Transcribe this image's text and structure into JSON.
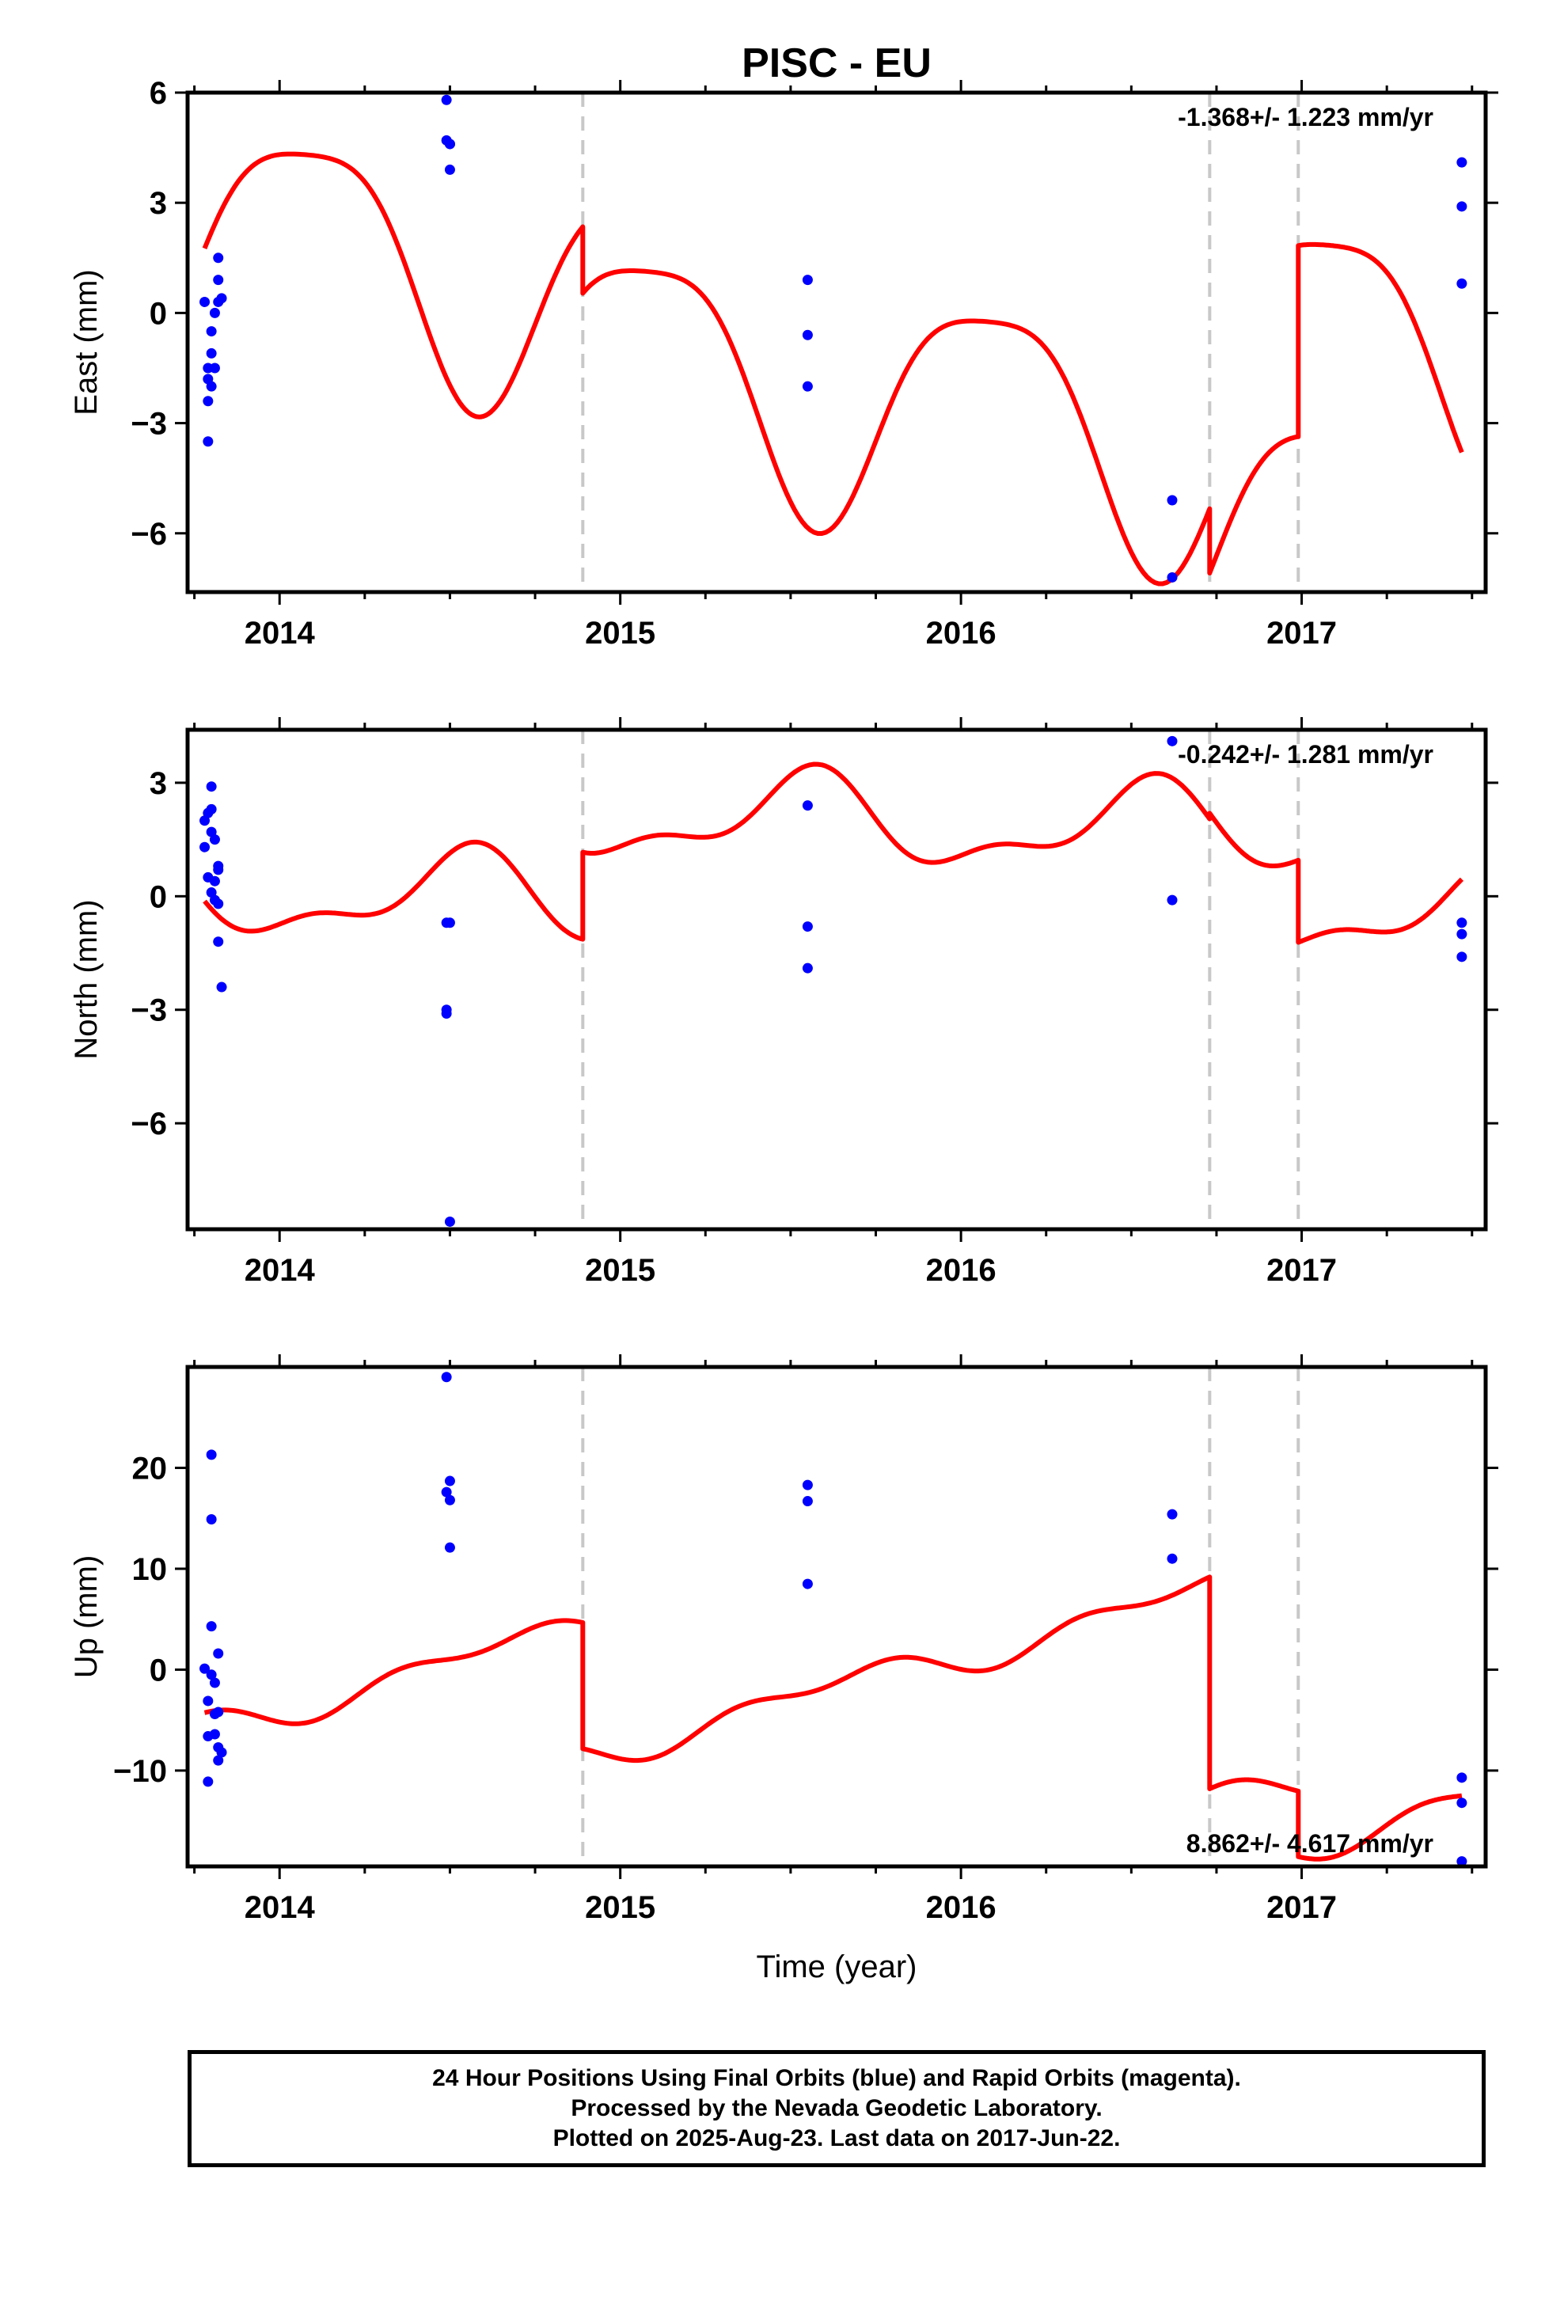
{
  "title": "PISC - EU",
  "footer": {
    "line1": "24 Hour Positions Using Final Orbits (blue) and Rapid Orbits (magenta).",
    "line2": "Processed by the Nevada Geodetic Laboratory.",
    "line3": "Plotted on 2025-Aug-23. Last data on 2017-Jun-22."
  },
  "colors": {
    "data_points": "#0000ff",
    "model": "#ff0000",
    "breaks": "#c8c8c8",
    "frame": "#000000"
  },
  "chart_data": [
    {
      "type": "scatter",
      "ylabel": "East (mm)",
      "xlabel": "",
      "xlim": [
        2013.73,
        2017.54
      ],
      "ylim": [
        -7.6,
        6.0
      ],
      "xticks": [
        2014,
        2015,
        2016,
        2017
      ],
      "yticks": [
        -6,
        -3,
        0,
        3,
        6
      ],
      "rate": "-1.368+/- 1.223 mm/yr",
      "rate_position": "top-right",
      "breaks": [
        2014.89,
        2016.73,
        2016.99
      ],
      "points": [
        [
          2013.78,
          0.3
        ],
        [
          2013.79,
          -1.5
        ],
        [
          2013.79,
          -1.8
        ],
        [
          2013.79,
          -2.4
        ],
        [
          2013.79,
          -3.5
        ],
        [
          2013.8,
          -0.5
        ],
        [
          2013.8,
          -1.1
        ],
        [
          2013.8,
          -2.0
        ],
        [
          2013.81,
          0.0
        ],
        [
          2013.81,
          -1.5
        ],
        [
          2013.82,
          0.3
        ],
        [
          2013.82,
          0.9
        ],
        [
          2013.82,
          1.5
        ],
        [
          2013.83,
          0.4
        ],
        [
          2014.49,
          5.8
        ],
        [
          2014.49,
          4.7
        ],
        [
          2014.5,
          4.6
        ],
        [
          2014.5,
          4.6
        ],
        [
          2014.5,
          3.9
        ],
        [
          2015.55,
          0.9
        ],
        [
          2015.55,
          -0.6
        ],
        [
          2015.55,
          -2.0
        ],
        [
          2016.62,
          -5.1
        ],
        [
          2016.62,
          -7.2
        ],
        [
          2017.47,
          4.1
        ],
        [
          2017.47,
          2.9
        ],
        [
          2017.47,
          0.8
        ]
      ],
      "model": {
        "segments": [
          [
            2013.78,
            2014.89
          ],
          [
            2014.89,
            2016.73
          ],
          [
            2016.73,
            2016.99
          ],
          [
            2016.99,
            2017.47
          ]
        ],
        "offsets": [
          -0.14,
          -1.95,
          -3.7,
          1.5
        ],
        "rate": -1.368,
        "annual": [
          1.6,
          2.8
        ],
        "semiannual": [
          -0.6,
          -0.4
        ],
        "t0": 2015.5
      }
    },
    {
      "type": "scatter",
      "ylabel": "North (mm)",
      "xlabel": "",
      "xlim": [
        2013.73,
        2017.54
      ],
      "ylim": [
        -8.8,
        4.4
      ],
      "xticks": [
        2014,
        2015,
        2016,
        2017
      ],
      "yticks": [
        -6,
        -3,
        0,
        3
      ],
      "rate": "-0.242+/- 1.281 mm/yr",
      "rate_position": "top-right",
      "breaks": [
        2014.89,
        2016.73,
        2016.99
      ],
      "points": [
        [
          2013.78,
          1.3
        ],
        [
          2013.78,
          2.0
        ],
        [
          2013.79,
          2.2
        ],
        [
          2013.79,
          0.5
        ],
        [
          2013.8,
          2.3
        ],
        [
          2013.8,
          1.7
        ],
        [
          2013.8,
          0.1
        ],
        [
          2013.8,
          2.9
        ],
        [
          2013.81,
          1.5
        ],
        [
          2013.81,
          0.4
        ],
        [
          2013.81,
          -0.1
        ],
        [
          2013.82,
          0.7
        ],
        [
          2013.82,
          -1.2
        ],
        [
          2013.82,
          -0.2
        ],
        [
          2013.82,
          0.8
        ],
        [
          2013.83,
          -2.4
        ],
        [
          2014.49,
          -0.7
        ],
        [
          2014.49,
          -3.0
        ],
        [
          2014.49,
          -3.1
        ],
        [
          2014.5,
          -0.7
        ],
        [
          2014.5,
          -8.6
        ],
        [
          2015.55,
          2.4
        ],
        [
          2015.55,
          -0.8
        ],
        [
          2015.55,
          -1.9
        ],
        [
          2016.62,
          4.1
        ],
        [
          2016.62,
          -0.1
        ],
        [
          2017.47,
          -0.7
        ],
        [
          2017.47,
          -1.0
        ],
        [
          2017.47,
          -1.6
        ]
      ],
      "model": {
        "segments": [
          [
            2013.78,
            2014.89
          ],
          [
            2014.89,
            2016.73
          ],
          [
            2016.73,
            2016.99
          ],
          [
            2016.99,
            2017.47
          ]
        ],
        "offsets": [
          -0.3,
          2.0,
          2.15,
          -0.02
        ],
        "rate": -0.242,
        "annual": [
          -0.3,
          -1.0
        ],
        "semiannual": [
          0.45,
          0.2
        ],
        "t0": 2015.5
      }
    },
    {
      "type": "scatter",
      "ylabel": "Up (mm)",
      "xlabel": "Time (year)",
      "xlim": [
        2013.73,
        2017.54
      ],
      "ylim": [
        -19.5,
        30.0
      ],
      "xticks": [
        2014,
        2015,
        2016,
        2017
      ],
      "yticks": [
        -10,
        0,
        10,
        20
      ],
      "rate": "8.862+/- 4.617 mm/yr",
      "rate_position": "bottom-right",
      "breaks": [
        2014.89,
        2016.73,
        2016.99
      ],
      "points": [
        [
          2013.78,
          0.1
        ],
        [
          2013.79,
          -11.1
        ],
        [
          2013.79,
          -3.1
        ],
        [
          2013.79,
          -6.6
        ],
        [
          2013.8,
          4.3
        ],
        [
          2013.8,
          14.9
        ],
        [
          2013.8,
          21.3
        ],
        [
          2013.8,
          -0.5
        ],
        [
          2013.81,
          -6.4
        ],
        [
          2013.81,
          -4.4
        ],
        [
          2013.81,
          -1.3
        ],
        [
          2013.82,
          -9.0
        ],
        [
          2013.82,
          1.6
        ],
        [
          2013.82,
          -4.2
        ],
        [
          2013.82,
          -7.7
        ],
        [
          2013.83,
          -8.2
        ],
        [
          2014.49,
          29.0
        ],
        [
          2014.49,
          17.6
        ],
        [
          2014.5,
          16.8
        ],
        [
          2014.5,
          18.7
        ],
        [
          2014.5,
          12.1
        ],
        [
          2015.55,
          18.3
        ],
        [
          2015.55,
          16.7
        ],
        [
          2015.55,
          8.5
        ],
        [
          2016.62,
          15.4
        ],
        [
          2016.62,
          11.0
        ],
        [
          2017.47,
          -10.7
        ],
        [
          2017.47,
          -13.2
        ],
        [
          2017.47,
          -19.0
        ]
      ],
      "model": {
        "segments": [
          [
            2013.78,
            2014.89
          ],
          [
            2014.89,
            2016.73
          ],
          [
            2016.73,
            2016.99
          ],
          [
            2016.99,
            2017.47
          ]
        ],
        "offsets": [
          9.5,
          -3.0,
          -24.0,
          -30.5
        ],
        "rate": 8.862,
        "annual": [
          -0.9,
          -0.9
        ],
        "semiannual": [
          -0.8,
          -0.5
        ],
        "t0": 2015.5
      }
    }
  ]
}
